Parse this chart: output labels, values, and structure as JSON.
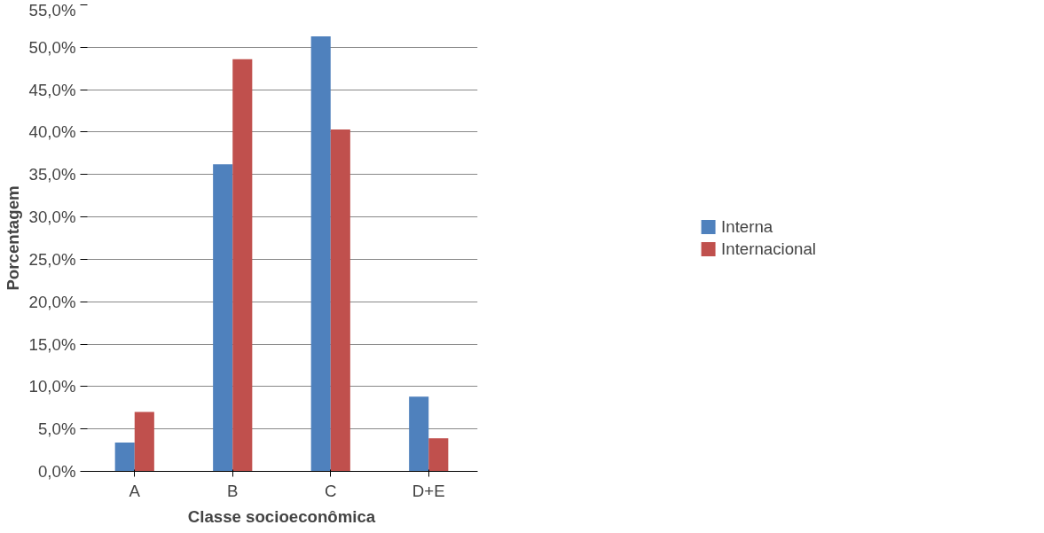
{
  "chart_data": {
    "type": "bar",
    "xlabel": "Classe socioeconômica",
    "ylabel": "Porcentagem",
    "categories": [
      "A",
      "B",
      "C",
      "D+E"
    ],
    "series": [
      {
        "name": "Interna",
        "color": "#4f81bd",
        "values": [
          3.4,
          36.2,
          51.3,
          8.8
        ]
      },
      {
        "name": "Internacional",
        "color": "#c0504d",
        "values": [
          7.0,
          48.6,
          40.3,
          3.9
        ]
      }
    ],
    "ylim": [
      0,
      55
    ],
    "yticks": [
      {
        "value": 0,
        "label": "0,0%"
      },
      {
        "value": 5,
        "label": "5,0%"
      },
      {
        "value": 10,
        "label": "10,0%"
      },
      {
        "value": 15,
        "label": "15,0%"
      },
      {
        "value": 20,
        "label": "20,0%"
      },
      {
        "value": 25,
        "label": "25,0%"
      },
      {
        "value": 30,
        "label": "30,0%"
      },
      {
        "value": 35,
        "label": "35,0%"
      },
      {
        "value": 40,
        "label": "40,0%"
      },
      {
        "value": 45,
        "label": "45,0%"
      },
      {
        "value": 50,
        "label": "50,0%"
      },
      {
        "value": 55,
        "label": "55,0%"
      }
    ],
    "grid": "y",
    "legend": "right"
  }
}
